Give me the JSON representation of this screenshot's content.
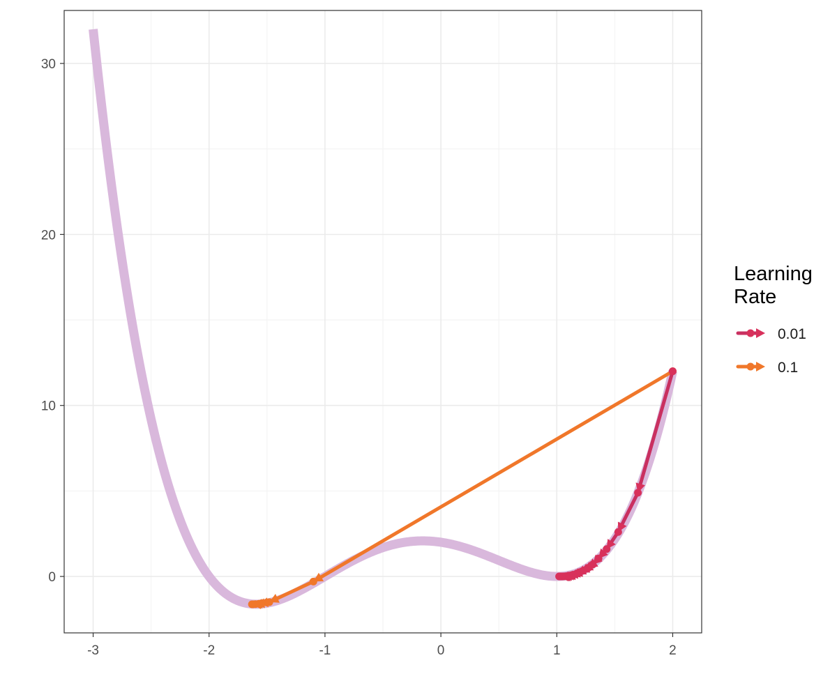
{
  "chart_data": {
    "type": "line",
    "title": "",
    "xlabel": "",
    "ylabel": "",
    "xlim": [
      -3.25,
      2.25
    ],
    "ylim": [
      -3.3,
      33.1
    ],
    "x_ticks": [
      -3,
      -2,
      -1,
      0,
      1,
      2
    ],
    "x_tick_labels": [
      "-3",
      "-2",
      "-1",
      "0",
      "1",
      "2"
    ],
    "y_ticks": [
      0,
      10,
      20,
      30
    ],
    "y_tick_labels": [
      "0",
      "10",
      "20",
      "30"
    ],
    "grid": true,
    "background_curve": {
      "x_range": [
        -3,
        2
      ],
      "coefficients_x4_x3_x2_x1_x0": [
        1,
        1,
        -3,
        -1,
        2
      ],
      "color": "#d9b8dc"
    },
    "legend": {
      "title_lines": [
        "Learning",
        "Rate"
      ],
      "placement": "right"
    },
    "series": [
      {
        "name": "0.01",
        "color": "#d8315b",
        "line_color": "#c93060",
        "points": [
          {
            "x": 2.0,
            "y": 12.0
          },
          {
            "x": 1.7,
            "y": 4.9
          },
          {
            "x": 1.53,
            "y": 2.6
          },
          {
            "x": 1.43,
            "y": 1.6
          },
          {
            "x": 1.36,
            "y": 1.05
          },
          {
            "x": 1.31,
            "y": 0.7
          },
          {
            "x": 1.27,
            "y": 0.5
          },
          {
            "x": 1.23,
            "y": 0.35
          },
          {
            "x": 1.2,
            "y": 0.25
          },
          {
            "x": 1.17,
            "y": 0.16
          },
          {
            "x": 1.14,
            "y": 0.1
          },
          {
            "x": 1.12,
            "y": 0.06
          },
          {
            "x": 1.1,
            "y": 0.03
          },
          {
            "x": 1.08,
            "y": 0.015
          },
          {
            "x": 1.065,
            "y": 0.005
          },
          {
            "x": 1.05,
            "y": 0.0
          },
          {
            "x": 1.04,
            "y": 0.0
          },
          {
            "x": 1.03,
            "y": 0.0
          },
          {
            "x": 1.02,
            "y": 0.0
          }
        ]
      },
      {
        "name": "0.1",
        "color": "#f0772a",
        "line_color": "#f0772a",
        "points": [
          {
            "x": 2.0,
            "y": 12.0
          },
          {
            "x": -1.1,
            "y": -0.3
          },
          {
            "x": -1.48,
            "y": -1.5
          },
          {
            "x": -1.57,
            "y": -1.6
          },
          {
            "x": -1.6,
            "y": -1.62
          },
          {
            "x": -1.62,
            "y": -1.63
          },
          {
            "x": -1.63,
            "y": -1.63
          }
        ]
      }
    ]
  }
}
